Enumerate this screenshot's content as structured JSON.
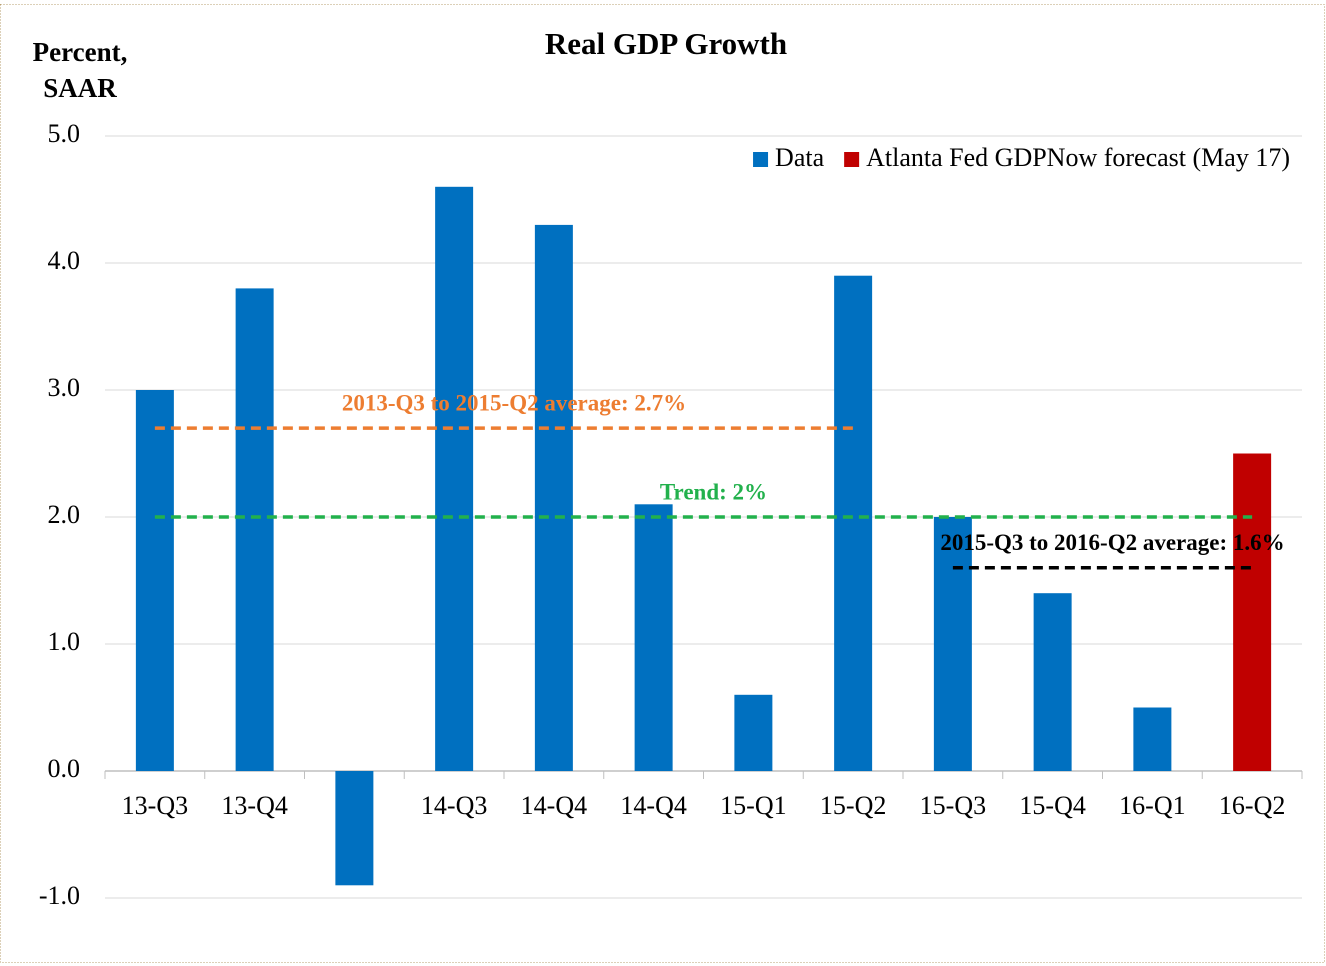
{
  "chart_data": {
    "type": "bar",
    "title": "Real GDP Growth",
    "y_label": [
      "Percent,",
      "SAAR"
    ],
    "categories": [
      "13-Q3",
      "13-Q4",
      null,
      "14-Q3",
      "14-Q4",
      "14-Q4",
      "15-Q1",
      "15-Q2",
      "15-Q3",
      "15-Q4",
      "16-Q1",
      "16-Q2"
    ],
    "series": [
      {
        "name": "Data",
        "color": "#0070c0",
        "values": [
          3.0,
          3.8,
          -0.9,
          4.6,
          4.3,
          2.1,
          0.6,
          3.9,
          2.0,
          1.4,
          0.5,
          null
        ]
      },
      {
        "name": "Atlanta Fed GDPNow forecast (May 17)",
        "color": "#c00000",
        "values": [
          null,
          null,
          null,
          null,
          null,
          null,
          null,
          null,
          null,
          null,
          null,
          2.5
        ]
      }
    ],
    "reference_lines": [
      {
        "label": "2013-Q3 to 2015-Q2 average: 2.7%",
        "value": 2.7,
        "color": "#ed7d31",
        "start": "13-Q3",
        "end": "15-Q2"
      },
      {
        "label": "Trend: 2%",
        "value": 2,
        "color": "#22b14c",
        "start": "13-Q3",
        "end": "16-Q2"
      },
      {
        "label": "2015-Q3 to 2016-Q2 average: 1.6%",
        "value": 1.6,
        "color": "#000000",
        "start": "15-Q3",
        "end": "16-Q2"
      }
    ],
    "ylim": [
      -1,
      5
    ],
    "yticks": [
      {
        "value": -1,
        "label": "-1.0"
      },
      {
        "value": 0,
        "label": "0.0"
      },
      {
        "value": 1,
        "label": "1.0"
      },
      {
        "value": 2,
        "label": "2.0"
      },
      {
        "value": 3,
        "label": "3.0"
      },
      {
        "value": 4,
        "label": "4.0"
      },
      {
        "value": 5,
        "label": "5.0"
      }
    ],
    "grid": true,
    "legend": "top-right"
  }
}
